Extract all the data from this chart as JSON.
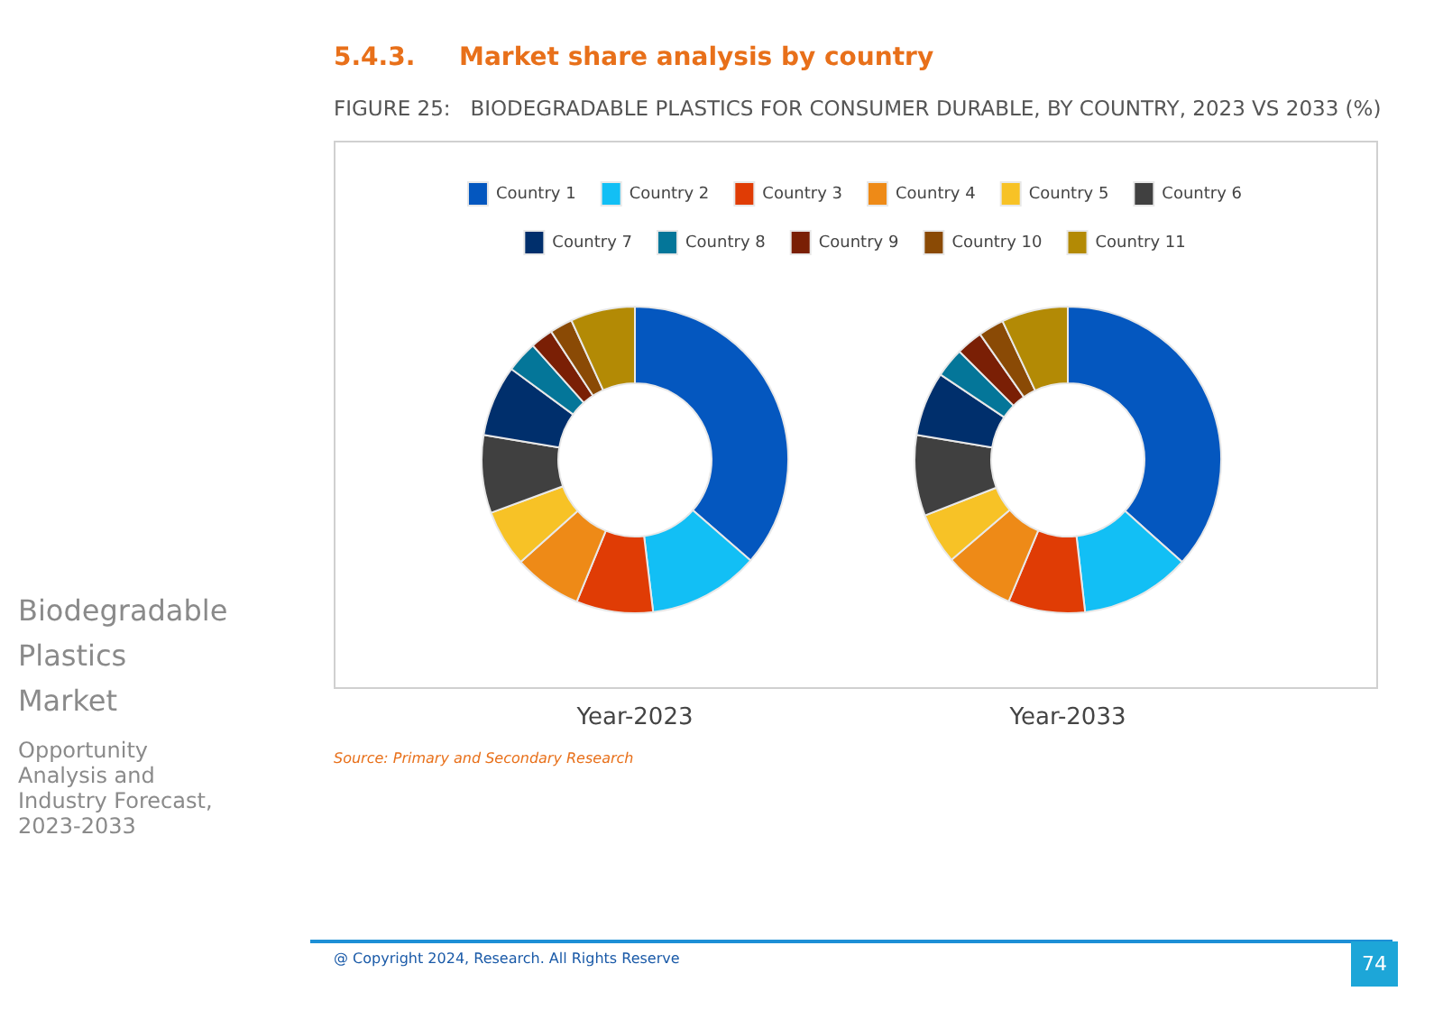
{
  "chart_data": {
    "type": "donut",
    "title": "FIGURE 25:   BIODEGRADABLE PLASTICS FOR CONSUMER DURABLE, BY COUNTRY, 2023 VS 2033 (%)",
    "legend": "top",
    "categories": [
      "Country 1",
      "Country 2",
      "Country 3",
      "Country 4",
      "Country 5",
      "Country 6",
      "Country 7",
      "Country 8",
      "Country 9",
      "Country 10",
      "Country 11"
    ],
    "colors": [
      "#0457bf",
      "#12bff5",
      "#e03c05",
      "#ee8a17",
      "#f7c226",
      "#404040",
      "#002f6c",
      "#047699",
      "#7a1f05",
      "#8a4a05",
      "#b38a05"
    ],
    "series": [
      {
        "name": "Year-2023",
        "values": [
          36.4,
          11.7,
          8.1,
          7.2,
          6.0,
          8.2,
          7.5,
          3.3,
          2.4,
          2.4,
          6.8
        ]
      },
      {
        "name": "Year-2033",
        "values": [
          36.6,
          11.6,
          8.1,
          7.4,
          5.4,
          8.5,
          6.8,
          3.1,
          2.8,
          2.7,
          7.0
        ]
      }
    ],
    "annotations": [
      "Biodegradable Plastics Market",
      "Opportunity Analysis and Industry Forecast, 2023-2033",
      "5.4.3.     Market share analysis by country",
      "Source: Primary and Secondary Research",
      "@ Copyright 2024, Research. All Rights Reserve",
      "74"
    ]
  }
}
